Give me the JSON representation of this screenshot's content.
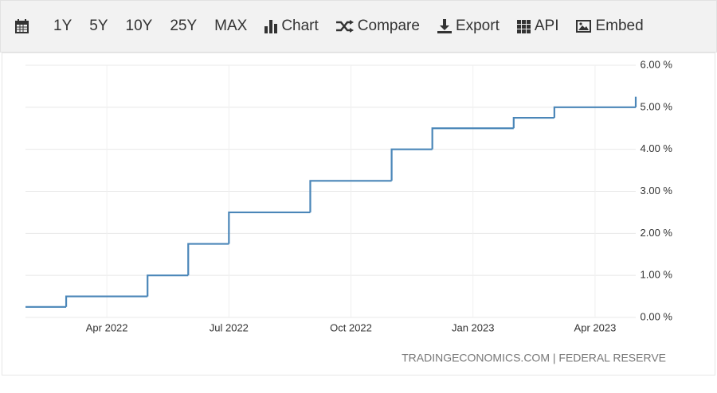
{
  "toolbar": {
    "items": [
      "1Y",
      "5Y",
      "10Y",
      "25Y",
      "MAX",
      "Chart",
      "Compare",
      "Export",
      "API",
      "Embed"
    ]
  },
  "chart_data": {
    "type": "line",
    "step": true,
    "series": [
      {
        "color": "#4a86b8",
        "x": [
          "2022-02",
          "2022-03",
          "2022-05",
          "2022-06",
          "2022-07",
          "2022-09",
          "2022-11",
          "2022-12",
          "2023-02",
          "2023-03",
          "2023-05"
        ],
        "values": [
          0.25,
          0.5,
          1.0,
          1.75,
          2.5,
          3.25,
          4.0,
          4.5,
          4.75,
          5.0,
          5.25
        ]
      }
    ],
    "xlim": [
      "2022-02",
      "2023-05"
    ],
    "xticks": [
      {
        "value": "2022-04",
        "label": "Apr 2022"
      },
      {
        "value": "2022-07",
        "label": "Jul 2022"
      },
      {
        "value": "2022-10",
        "label": "Oct 2022"
      },
      {
        "value": "2023-01",
        "label": "Jan 2023"
      },
      {
        "value": "2023-04",
        "label": "Apr 2023"
      }
    ],
    "ylim": [
      0,
      6
    ],
    "yticks": [
      {
        "value": 0,
        "label": "0.00 %"
      },
      {
        "value": 1,
        "label": "1.00 %"
      },
      {
        "value": 2,
        "label": "2.00 %"
      },
      {
        "value": 3,
        "label": "3.00 %"
      },
      {
        "value": 4,
        "label": "4.00 %"
      },
      {
        "value": 5,
        "label": "5.00 %"
      },
      {
        "value": 6,
        "label": "6.00 %"
      }
    ],
    "grid": true,
    "y_axis_side": "right",
    "source": "TRADINGECONOMICS.COM | FEDERAL RESERVE"
  }
}
